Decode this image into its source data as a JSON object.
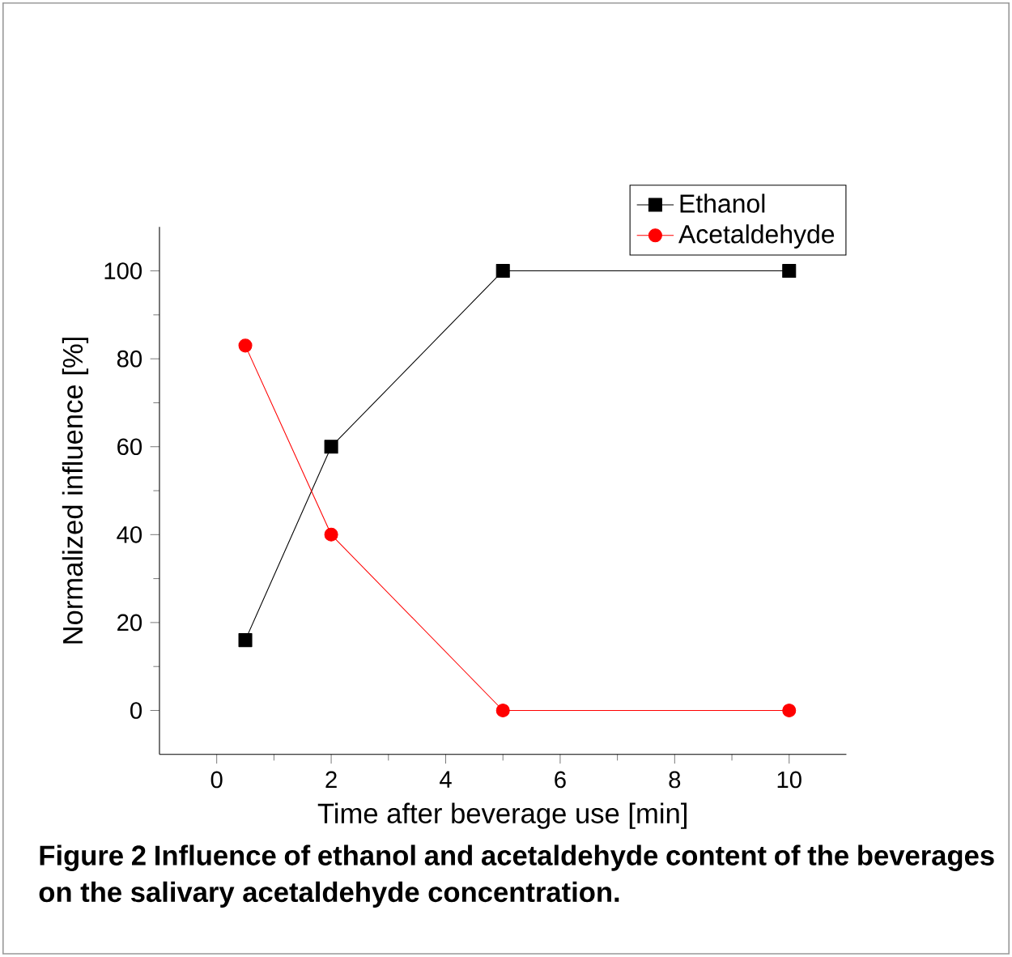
{
  "chart_data": {
    "type": "line",
    "xlabel": "Time after beverage use [min]",
    "ylabel": "Normalized influence [%]",
    "x": [
      0.5,
      2,
      5,
      10
    ],
    "series": [
      {
        "name": "Ethanol",
        "color": "#000000",
        "marker": "square",
        "values": [
          16,
          60,
          100,
          100
        ]
      },
      {
        "name": "Acetaldehyde",
        "color": "#ff0000",
        "marker": "circle",
        "values": [
          83,
          40,
          0,
          0
        ]
      }
    ],
    "xlim": [
      -1,
      11
    ],
    "xticks": [
      0,
      2,
      4,
      6,
      8,
      10
    ],
    "ylim": [
      -10,
      110
    ],
    "yticks": [
      0,
      20,
      40,
      60,
      80,
      100
    ],
    "legend": "top right",
    "grid": false,
    "line_style": "solid",
    "annotations": [
      "Figure 2 Influence of ethanol and acetaldehyde content of the beverages on the salivary acetaldehyde concentration."
    ]
  }
}
